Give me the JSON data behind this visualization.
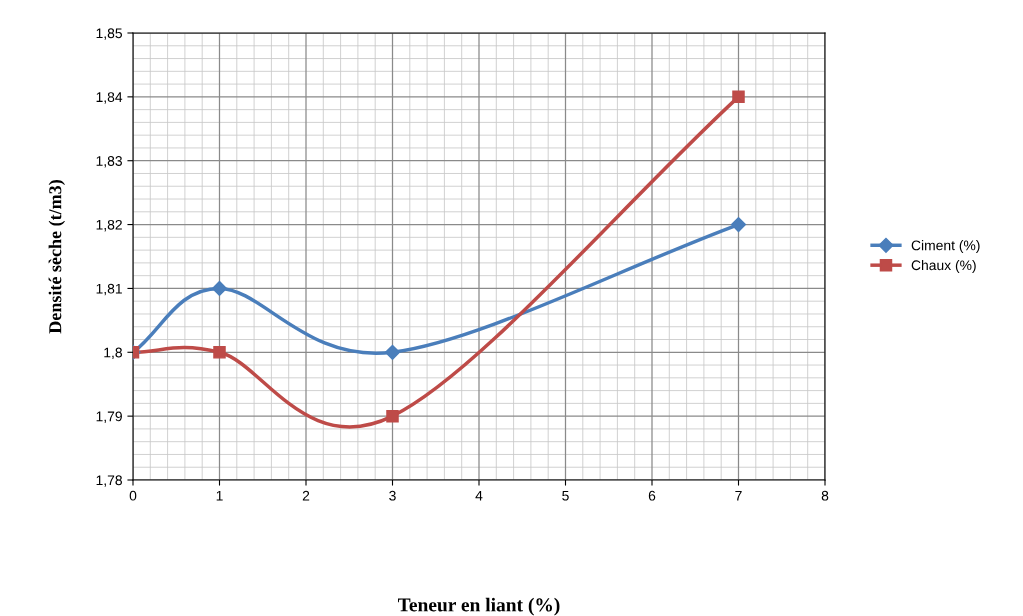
{
  "chart_data": {
    "type": "line",
    "xlabel": "Teneur en liant (%)",
    "ylabel": "Densité sèche (t/m3)",
    "xlim": [
      0,
      8
    ],
    "xticks": [
      0,
      1,
      2,
      3,
      4,
      5,
      6,
      7,
      8
    ],
    "ylim": [
      1.78,
      1.85
    ],
    "yticks": [
      {
        "value": 1.78,
        "label": "1,78"
      },
      {
        "value": 1.79,
        "label": "1,79"
      },
      {
        "value": 1.8,
        "label": "1,8"
      },
      {
        "value": 1.81,
        "label": "1,81"
      },
      {
        "value": 1.82,
        "label": "1,82"
      },
      {
        "value": 1.83,
        "label": "1,83"
      },
      {
        "value": 1.84,
        "label": "1,84"
      },
      {
        "value": 1.85,
        "label": "1,85"
      }
    ],
    "grid": true,
    "legend": "right",
    "line_style": "solid",
    "series": [
      {
        "name": "Ciment (%)",
        "color": "#4a7ebb",
        "marker": "diamond",
        "x": [
          0,
          1,
          3,
          7
        ],
        "values": [
          1.8,
          1.81,
          1.8,
          1.82
        ]
      },
      {
        "name": "Chaux (%)",
        "color": "#be4b48",
        "marker": "square",
        "x": [
          0,
          1,
          3,
          7
        ],
        "values": [
          1.8,
          1.8,
          1.79,
          1.84
        ]
      }
    ]
  }
}
